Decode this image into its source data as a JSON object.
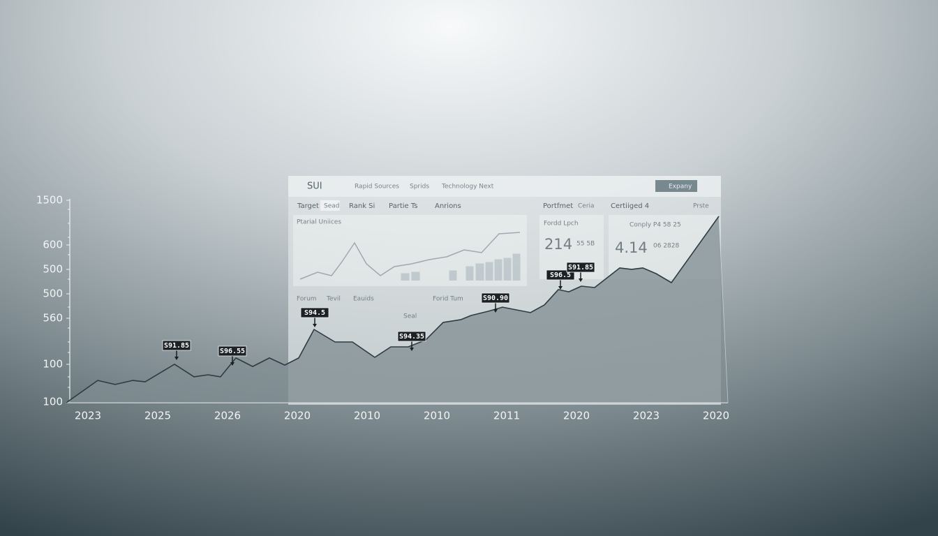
{
  "chart_data": {
    "type": "area",
    "x": [
      -0.31,
      0.14,
      0.39,
      0.64,
      0.82,
      1.24,
      1.52,
      1.72,
      1.9,
      2.12,
      2.36,
      2.6,
      2.82,
      3.02,
      3.24,
      3.54,
      3.79,
      4.11,
      4.34,
      4.59,
      4.84,
      5.09,
      5.34,
      5.49,
      5.74,
      5.94,
      6.34,
      6.54,
      6.74,
      6.89,
      7.07,
      7.26,
      7.62,
      7.79,
      7.95,
      8.14,
      8.36,
      9.04
    ],
    "values": [
      0,
      11.0,
      9.0,
      11.0,
      10.3,
      19.0,
      12.8,
      13.8,
      12.8,
      22.1,
      17.9,
      22.1,
      18.6,
      22.1,
      36.2,
      30.0,
      30.0,
      22.4,
      27.6,
      27.6,
      31.0,
      39.7,
      41.0,
      43.1,
      45.2,
      47.2,
      44.5,
      48.3,
      55.9,
      54.8,
      57.6,
      56.9,
      66.6,
      65.9,
      66.6,
      63.8,
      59.3,
      92.1
    ],
    "xlim": [
      -0.31,
      9.04
    ],
    "ylim": [
      0,
      100
    ],
    "x_labels": [
      "2023",
      "2025",
      "2026",
      "2020",
      "2010",
      "2010",
      "2011",
      "2020",
      "2023",
      "2020"
    ],
    "y_labels": [
      "1500",
      "600",
      "500",
      "500",
      "560",
      "100",
      "100"
    ],
    "annotations": [
      "S91.85",
      "S96.55",
      "S94.5",
      "S94.35",
      "S90.90",
      "S96.5",
      "S91.85"
    ],
    "color": "#2f3b41"
  },
  "dashboard": {
    "brand": "SUI",
    "nav": [
      "Rapid Sources",
      "Sprids",
      "Technology Next"
    ],
    "button": "Expany",
    "tabs": [
      "Target",
      "Sead",
      "Rank Si",
      "Partie Ts",
      "Anrions",
      "Portfmet",
      "Ceria",
      "Certiiged 4",
      "Prste"
    ],
    "panel_titles": [
      "Ptarial Uniices",
      "Fordd Lpch",
      "Conply P4 58 25"
    ],
    "metrics": [
      "214",
      "55 5B",
      "4.14",
      "06 2828"
    ],
    "lower_tabs": [
      "Forum",
      "Tevil",
      "Eauids",
      "Forid Tum",
      "Seal"
    ]
  }
}
